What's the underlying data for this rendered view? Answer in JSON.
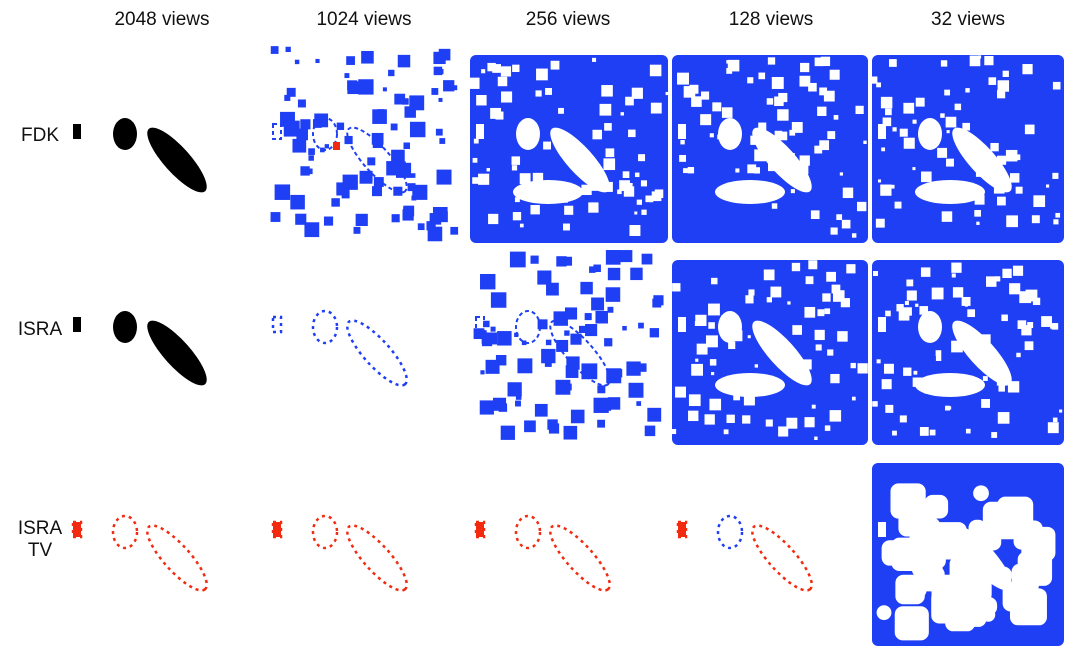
{
  "column_headers": [
    "2048 views",
    "1024 views",
    "256 views",
    "128 views",
    "32 views"
  ],
  "row_labels": [
    [
      "FDK"
    ],
    [
      "ISRA"
    ],
    [
      "ISRA",
      "TV"
    ]
  ]
}
